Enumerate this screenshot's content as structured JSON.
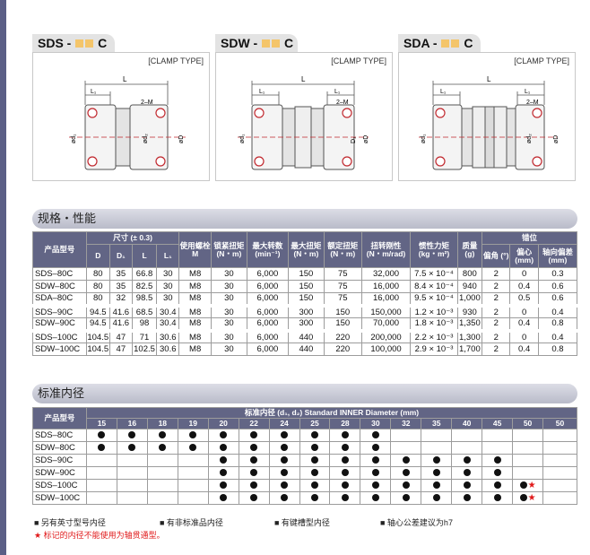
{
  "diagrams": [
    {
      "prefix": "SDS -",
      "suffix": "C",
      "clamp_label": "[CLAMP TYPE]"
    },
    {
      "prefix": "SDW -",
      "suffix": "C",
      "clamp_label": "[CLAMP TYPE]"
    },
    {
      "prefix": "SDA -",
      "suffix": "C",
      "clamp_label": "[CLAMP TYPE]"
    }
  ],
  "diagram_labels": {
    "L": "L",
    "L1": "L₁",
    "M": "2–M",
    "d1": "ød₁",
    "d2": "ød₂",
    "D1": "D₁",
    "D": "øD"
  },
  "spec_section": {
    "title": "规格・性能"
  },
  "spec_table": {
    "headers": {
      "model": "产品型号",
      "size": "尺寸 (± 0.3)",
      "D": "D",
      "D1": "D₁",
      "L": "L",
      "L1": "L₁",
      "screw": "使用螺栓 M",
      "torque": "锁紧扭矩 (N・m)",
      "speed": "最大转数 (min⁻¹)",
      "max_torque": "最大扭矩 (N・m)",
      "rated_torque": "额定扭矩 (N・m)",
      "stiffness": "扭转刚性 (N・m/rad)",
      "inertia": "惯性力矩 (kg・m²)",
      "mass": "质量 (g)",
      "misalign": "错位",
      "angle": "偏角 (°)",
      "eccentric": "偏心 (mm)",
      "axial": "轴向偏差 (mm)"
    },
    "groups": [
      [
        [
          "SDS–80C",
          "80",
          "35",
          "66.8",
          "30",
          "M8",
          "30",
          "6,000",
          "150",
          "75",
          "32,000",
          "7.5 × 10⁻⁴",
          "800",
          "2",
          "0",
          "0.3"
        ],
        [
          "SDW–80C",
          "80",
          "35",
          "82.5",
          "30",
          "M8",
          "30",
          "6,000",
          "150",
          "75",
          "16,000",
          "8.4 × 10⁻⁴",
          "940",
          "2",
          "0.4",
          "0.6"
        ],
        [
          "SDA–80C",
          "80",
          "32",
          "98.5",
          "30",
          "M8",
          "30",
          "6,000",
          "150",
          "75",
          "16,000",
          "9.5 × 10⁻⁴",
          "1,000",
          "2",
          "0.5",
          "0.6"
        ]
      ],
      [
        [
          "SDS–90C",
          "94.5",
          "41.6",
          "68.5",
          "30.4",
          "M8",
          "30",
          "6,000",
          "300",
          "150",
          "150,000",
          "1.2 × 10⁻³",
          "930",
          "2",
          "0",
          "0.4"
        ],
        [
          "SDW–90C",
          "94.5",
          "41.6",
          "98",
          "30.4",
          "M8",
          "30",
          "6,000",
          "300",
          "150",
          "70,000",
          "1.8 × 10⁻³",
          "1,350",
          "2",
          "0.4",
          "0.8"
        ]
      ],
      [
        [
          "SDS–100C",
          "104.5",
          "47",
          "71",
          "30.6",
          "M8",
          "30",
          "6,000",
          "440",
          "220",
          "200,000",
          "2.2 × 10⁻³",
          "1,300",
          "2",
          "0",
          "0.4"
        ],
        [
          "SDW–100C",
          "104.5",
          "47",
          "102.5",
          "30.6",
          "M8",
          "30",
          "6,000",
          "440",
          "220",
          "100,000",
          "2.9 × 10⁻³",
          "1,700",
          "2",
          "0.4",
          "0.8"
        ]
      ]
    ]
  },
  "bore_section": {
    "title": "标准内径"
  },
  "bore_table": {
    "model_header": "产品型号",
    "span_header": "标准内径 (d₁, d₂) Standard INNER Diameter (mm)",
    "sizes": [
      "15",
      "16",
      "18",
      "19",
      "20",
      "22",
      "24",
      "25",
      "28",
      "30",
      "32",
      "35",
      "40",
      "45",
      "50",
      "50"
    ],
    "rows": [
      {
        "model": "SDS–80C",
        "marks": [
          "dot",
          "dot",
          "dot",
          "dot",
          "dot",
          "dot",
          "dot",
          "dot",
          "dot",
          "dot",
          "",
          "",
          "",
          "",
          "",
          ""
        ]
      },
      {
        "model": "SDW–80C",
        "marks": [
          "dot",
          "dot",
          "dot",
          "dot",
          "dot",
          "dot",
          "dot",
          "dot",
          "dot",
          "dot",
          "",
          "",
          "",
          "",
          "",
          ""
        ]
      },
      {
        "model": "SDS–90C",
        "marks": [
          "",
          "",
          "",
          "",
          "dot",
          "dot",
          "dot",
          "dot",
          "dot",
          "dot",
          "dot",
          "dot",
          "dot",
          "dot",
          "",
          ""
        ]
      },
      {
        "model": "SDW–90C",
        "marks": [
          "",
          "",
          "",
          "",
          "dot",
          "dot",
          "dot",
          "dot",
          "dot",
          "dot",
          "dot",
          "dot",
          "dot",
          "dot",
          "",
          ""
        ]
      },
      {
        "model": "SDS–100C",
        "marks": [
          "",
          "",
          "",
          "",
          "dot",
          "dot",
          "dot",
          "dot",
          "dot",
          "dot",
          "dot",
          "dot",
          "dot",
          "dot",
          "dot-star",
          ""
        ]
      },
      {
        "model": "SDW–100C",
        "marks": [
          "",
          "",
          "",
          "",
          "dot",
          "dot",
          "dot",
          "dot",
          "dot",
          "dot",
          "dot",
          "dot",
          "dot",
          "dot",
          "dot-star",
          ""
        ]
      }
    ]
  },
  "legend": [
    "■ 另有英寸型号内径",
    "■ 有非标准品内径",
    "■ 有键槽型内径",
    "■ 轴心公差建议为h7"
  ],
  "note": "★ 标记的内径不能使用为轴贯通型。",
  "colors": {
    "header_bg": "#626585",
    "accent_yellow": "#f4c56a",
    "star_red": "#e0191a",
    "side_bar": "#5b5f86"
  }
}
